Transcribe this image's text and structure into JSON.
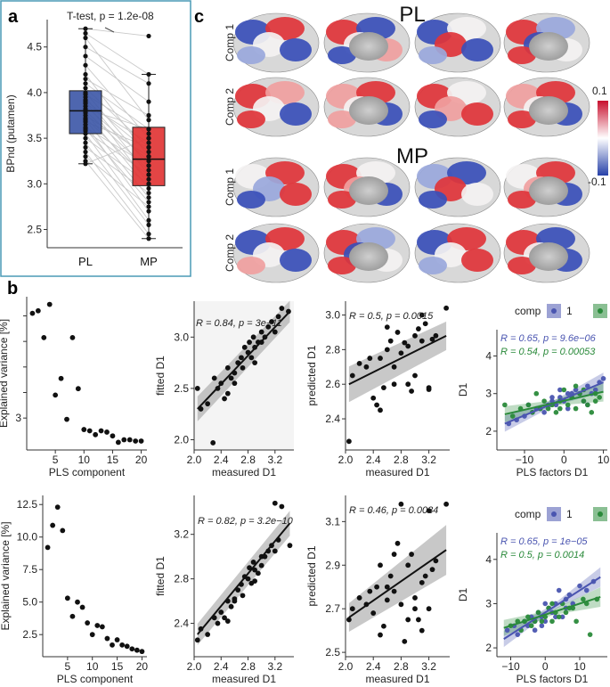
{
  "panel_labels": {
    "a": "a",
    "b": "b",
    "c": "c"
  },
  "colors": {
    "pl": "#3b55a6",
    "mp": "#e03131",
    "comp1": "#4a55b0",
    "comp2": "#2a8a3a",
    "band": "#9a9a9a",
    "ci_pls": "#d0d0d0"
  },
  "chart_data": [
    {
      "id": "a",
      "type": "box",
      "title": "T-test, p = 1.2e-08",
      "ylabel": "BPnd (putamen)",
      "xlabel": "",
      "categories": [
        "PL",
        "MP"
      ],
      "ylim": [
        2.3,
        4.8
      ],
      "yticks": [
        2.5,
        3.0,
        3.5,
        4.0,
        4.5
      ],
      "yticklabels": [
        "2.5",
        "3.0",
        "3.5",
        "4.0",
        "4.5"
      ],
      "boxes": [
        {
          "name": "PL",
          "q1": 3.55,
          "median": 3.8,
          "q3": 4.02,
          "lo": 3.22,
          "hi": 4.7
        },
        {
          "name": "MP",
          "q1": 2.98,
          "median": 3.27,
          "q3": 3.62,
          "lo": 2.4,
          "hi": 4.2
        }
      ],
      "paired": [
        [
          4.7,
          4.62
        ],
        [
          4.65,
          4.2
        ],
        [
          4.6,
          3.7
        ],
        [
          4.5,
          4.1
        ],
        [
          4.4,
          3.9
        ],
        [
          4.3,
          3.5
        ],
        [
          4.2,
          3.3
        ],
        [
          4.15,
          3.75
        ],
        [
          4.1,
          3.6
        ],
        [
          4.05,
          3.4
        ],
        [
          4.0,
          3.2
        ],
        [
          3.98,
          3.55
        ],
        [
          3.95,
          3.1
        ],
        [
          3.92,
          3.35
        ],
        [
          3.9,
          3.0
        ],
        [
          3.88,
          3.45
        ],
        [
          3.85,
          3.25
        ],
        [
          3.82,
          3.6
        ],
        [
          3.8,
          3.15
        ],
        [
          3.78,
          2.95
        ],
        [
          3.75,
          3.3
        ],
        [
          3.72,
          3.05
        ],
        [
          3.7,
          2.85
        ],
        [
          3.68,
          3.4
        ],
        [
          3.65,
          2.7
        ],
        [
          3.62,
          3.2
        ],
        [
          3.6,
          2.8
        ],
        [
          3.58,
          3.1
        ],
        [
          3.55,
          2.6
        ],
        [
          3.5,
          3.0
        ],
        [
          3.45,
          2.55
        ],
        [
          3.4,
          2.9
        ],
        [
          3.35,
          2.45
        ],
        [
          3.3,
          2.75
        ],
        [
          3.25,
          2.4
        ],
        [
          3.22,
          3.5
        ]
      ]
    },
    {
      "id": "b1",
      "type": "scatter",
      "xlabel": "PLS component",
      "ylabel": "Explained variance [%]",
      "xlim": [
        0,
        21
      ],
      "ylim": [
        0.5,
        12.5
      ],
      "xticks": [
        5,
        10,
        15,
        20
      ],
      "yticks": [
        3,
        5,
        7,
        9,
        11
      ],
      "yticklabels": [
        "3",
        "",
        "",
        "",
        ""
      ],
      "x": [
        1,
        2,
        3,
        4,
        5,
        6,
        7,
        8,
        9,
        10,
        11,
        12,
        13,
        14,
        15,
        16,
        17,
        18,
        19,
        20
      ],
      "y": [
        11.2,
        11.4,
        9.3,
        11.9,
        4.8,
        6.1,
        2.9,
        9.3,
        5.3,
        2.1,
        2.0,
        1.7,
        2.0,
        1.9,
        1.6,
        1.1,
        1.3,
        1.3,
        1.2,
        1.2
      ]
    },
    {
      "id": "b2",
      "type": "scatter",
      "xlabel": "measured D1",
      "ylabel": "fitted D1",
      "annotation": "R = 0.84, p = 3e−11",
      "xlim": [
        2.0,
        3.48
      ],
      "ylim": [
        1.9,
        3.35
      ],
      "xticks": [
        2.0,
        2.4,
        2.8,
        3.2
      ],
      "xticklabels": [
        "2.0",
        "2.4",
        "2.8",
        "3.2"
      ],
      "yticks": [
        2.0,
        2.5,
        3.0
      ],
      "yticklabels": [
        "2.0",
        "2.5",
        "3.0"
      ],
      "x": [
        2.05,
        2.1,
        2.2,
        2.3,
        2.35,
        2.4,
        2.45,
        2.5,
        2.55,
        2.6,
        2.65,
        2.7,
        2.72,
        2.75,
        2.8,
        2.82,
        2.85,
        2.88,
        2.9,
        2.95,
        3.0,
        3.05,
        3.1,
        3.15,
        3.2,
        3.25,
        3.3,
        3.4,
        2.5,
        2.6,
        2.9,
        3.0,
        2.28
      ],
      "y": [
        2.5,
        2.3,
        2.35,
        2.6,
        2.5,
        2.55,
        2.4,
        2.7,
        2.6,
        2.65,
        2.75,
        2.8,
        2.7,
        2.9,
        2.85,
        2.95,
        2.8,
        3.0,
        2.9,
        2.95,
        3.05,
        3.0,
        3.1,
        3.15,
        3.05,
        3.2,
        3.28,
        3.25,
        2.45,
        2.55,
        2.75,
        2.95,
        1.97
      ],
      "fit": {
        "x": [
          2.05,
          3.42
        ],
        "y": [
          2.3,
          3.25
        ]
      }
    },
    {
      "id": "b3",
      "type": "scatter",
      "xlabel": "measured D1",
      "ylabel": "predicted D1",
      "annotation": "R = 0.5, p = 0.0015",
      "xlim": [
        2.0,
        3.5
      ],
      "ylim": [
        2.22,
        3.08
      ],
      "xticks": [
        2.0,
        2.4,
        2.8,
        3.2
      ],
      "xticklabels": [
        "2.0",
        "2.4",
        "2.8",
        "3.2"
      ],
      "yticks": [
        2.4,
        2.6,
        2.8,
        3.0
      ],
      "yticklabels": [
        "2.4",
        "2.6",
        "2.8",
        "3.0"
      ],
      "x": [
        2.05,
        2.1,
        2.2,
        2.3,
        2.4,
        2.45,
        2.5,
        2.55,
        2.6,
        2.65,
        2.7,
        2.75,
        2.8,
        2.85,
        2.9,
        2.95,
        3.0,
        3.05,
        3.1,
        3.15,
        3.2,
        3.25,
        3.3,
        3.45,
        2.5,
        2.6,
        2.7,
        2.9,
        3.0,
        3.1,
        3.2,
        2.35
      ],
      "y": [
        2.27,
        2.65,
        2.72,
        2.7,
        2.52,
        2.48,
        2.75,
        2.58,
        2.8,
        2.85,
        2.6,
        2.9,
        2.78,
        2.84,
        2.82,
        2.56,
        2.88,
        2.92,
        3.0,
        2.95,
        2.57,
        2.86,
        2.88,
        3.04,
        2.45,
        2.93,
        2.7,
        2.6,
        2.65,
        2.85,
        2.58,
        2.75
      ],
      "fit": {
        "x": [
          2.05,
          3.45
        ],
        "y": [
          2.6,
          2.88
        ]
      }
    },
    {
      "id": "b4",
      "type": "scatter",
      "xlabel": "PLS factors D1",
      "ylabel": "D1",
      "legend": {
        "title": "comp",
        "items": [
          "1",
          "2"
        ]
      },
      "annotations": [
        "R = 0.65, p = 9.6e−06",
        "R = 0.54, p = 0.00053"
      ],
      "xlim": [
        -17,
        11
      ],
      "ylim": [
        1.5,
        4.7
      ],
      "xticks": [
        -10,
        0,
        10
      ],
      "xticklabels": [
        "−10",
        "0",
        "10"
      ],
      "yticks": [
        2,
        3,
        4
      ],
      "yticklabels": [
        "2",
        "3",
        "4"
      ],
      "series": [
        {
          "name": "1",
          "x": [
            -14,
            -12,
            -10,
            -8,
            -7,
            -6,
            -5,
            -4,
            -3,
            -2,
            -1,
            0,
            1,
            2,
            3,
            4,
            5,
            6,
            7,
            8,
            9,
            10,
            -9,
            -3,
            2,
            6,
            1,
            -1
          ],
          "y": [
            2.2,
            2.3,
            2.4,
            2.5,
            2.6,
            2.6,
            2.5,
            2.7,
            2.8,
            2.7,
            2.9,
            2.8,
            3.0,
            2.9,
            3.1,
            3.0,
            2.8,
            3.2,
            3.0,
            3.1,
            3.3,
            3.4,
            2.7,
            2.9,
            3.0,
            2.7,
            2.6,
            3.1
          ],
          "fit": {
            "x": [
              -15,
              10
            ],
            "y": [
              2.2,
              3.3
            ]
          }
        },
        {
          "name": "2",
          "x": [
            -15,
            -13,
            -11,
            -9,
            -8,
            -6,
            -5,
            -4,
            -3,
            -2,
            -1,
            0,
            1,
            2,
            3,
            4,
            5,
            6,
            7,
            8,
            9,
            -7,
            -1,
            3,
            5,
            8
          ],
          "y": [
            2.7,
            2.4,
            2.6,
            2.7,
            2.5,
            2.6,
            2.8,
            2.6,
            2.7,
            2.5,
            2.8,
            3.1,
            2.7,
            2.9,
            2.6,
            3.0,
            2.8,
            2.7,
            2.5,
            3.0,
            2.9,
            3.0,
            2.6,
            3.2,
            3.1,
            2.8
          ],
          "fit": {
            "x": [
              -15,
              10
            ],
            "y": [
              2.45,
              3.05
            ]
          }
        }
      ]
    },
    {
      "id": "b5",
      "type": "scatter",
      "xlabel": "PLS component",
      "ylabel": "Explained variance [%]",
      "xlim": [
        0,
        21
      ],
      "ylim": [
        0.8,
        13.2
      ],
      "xticks": [
        5,
        10,
        15,
        20
      ],
      "yticks": [
        2.5,
        5.0,
        7.5,
        10.0,
        12.5
      ],
      "yticklabels": [
        "2.5",
        "5.0",
        "7.5",
        "10.0",
        "12.5"
      ],
      "x": [
        1,
        2,
        3,
        4,
        5,
        6,
        7,
        8,
        9,
        10,
        11,
        12,
        13,
        14,
        15,
        16,
        17,
        18,
        19,
        20
      ],
      "y": [
        9.2,
        10.9,
        12.3,
        10.5,
        5.3,
        3.9,
        5.0,
        4.6,
        3.4,
        2.5,
        3.2,
        3.1,
        2.2,
        1.7,
        2.1,
        1.7,
        1.6,
        1.4,
        1.3,
        1.2
      ]
    },
    {
      "id": "b6",
      "type": "scatter",
      "xlabel": "measured D1",
      "ylabel": "fitted D1",
      "annotation": "R = 0.82, p = 3.2e−10",
      "xlim": [
        2.0,
        3.48
      ],
      "ylim": [
        2.1,
        3.55
      ],
      "xticks": [
        2.0,
        2.4,
        2.8,
        3.2
      ],
      "xticklabels": [
        "2.0",
        "2.4",
        "2.8",
        "3.2"
      ],
      "yticks": [
        2.4,
        2.8,
        3.2
      ],
      "yticklabels": [
        "2.4",
        "2.8",
        "3.2"
      ],
      "x": [
        2.05,
        2.1,
        2.2,
        2.3,
        2.35,
        2.4,
        2.45,
        2.5,
        2.55,
        2.6,
        2.65,
        2.7,
        2.72,
        2.75,
        2.8,
        2.82,
        2.85,
        2.88,
        2.9,
        2.95,
        3.0,
        3.05,
        3.1,
        3.15,
        3.2,
        3.3,
        3.42,
        2.5,
        2.6,
        2.9,
        3.0,
        3.2,
        3.25
      ],
      "y": [
        2.25,
        2.35,
        2.3,
        2.45,
        2.4,
        2.5,
        2.45,
        2.6,
        2.55,
        2.62,
        2.7,
        2.75,
        2.65,
        2.82,
        2.8,
        2.9,
        2.76,
        2.95,
        2.88,
        2.85,
        3.0,
        3.0,
        3.05,
        3.1,
        3.05,
        3.45,
        3.1,
        2.42,
        2.6,
        2.78,
        2.92,
        3.48,
        3.15
      ],
      "fit": {
        "x": [
          2.05,
          3.42
        ],
        "y": [
          2.3,
          3.3
        ]
      }
    },
    {
      "id": "b7",
      "type": "scatter",
      "xlabel": "measured D1",
      "ylabel": "predicted D1",
      "annotation": "R = 0.46, p = 0.0034",
      "xlim": [
        2.0,
        3.5
      ],
      "ylim": [
        2.48,
        3.22
      ],
      "xticks": [
        2.0,
        2.4,
        2.8,
        3.2
      ],
      "xticklabels": [
        "2.0",
        "2.4",
        "2.8",
        "3.2"
      ],
      "yticks": [
        2.5,
        2.7,
        2.9,
        3.1
      ],
      "yticklabels": [
        "2.5",
        "2.7",
        "2.9",
        "3.1"
      ],
      "x": [
        2.05,
        2.1,
        2.2,
        2.3,
        2.4,
        2.45,
        2.5,
        2.55,
        2.6,
        2.65,
        2.7,
        2.75,
        2.8,
        2.85,
        2.9,
        2.95,
        3.0,
        3.05,
        3.1,
        3.15,
        3.2,
        3.25,
        3.3,
        3.45,
        2.5,
        2.6,
        2.7,
        2.9,
        3.0,
        3.1,
        3.2,
        2.35,
        2.8
      ],
      "y": [
        2.65,
        2.7,
        2.75,
        2.72,
        2.68,
        2.8,
        2.9,
        2.62,
        2.8,
        2.85,
        2.78,
        3.0,
        2.72,
        2.55,
        2.9,
        2.95,
        2.7,
        2.65,
        2.6,
        2.85,
        3.15,
        2.88,
        2.92,
        3.18,
        2.58,
        2.74,
        2.95,
        2.65,
        2.75,
        2.82,
        2.7,
        2.78,
        3.18
      ],
      "fit": {
        "x": [
          2.05,
          3.45
        ],
        "y": [
          2.66,
          2.97
        ]
      }
    },
    {
      "id": "b8",
      "type": "scatter",
      "xlabel": "PLS factors D1",
      "ylabel": "D1",
      "legend": {
        "title": "comp",
        "items": [
          "1",
          "2"
        ]
      },
      "annotations": [
        "R = 0.65, p = 1e−05",
        "R = 0.5, p = 0.0014"
      ],
      "xlim": [
        -14,
        18
      ],
      "ylim": [
        1.8,
        4.6
      ],
      "xticks": [
        -10,
        0,
        10
      ],
      "xticklabels": [
        "−10",
        "0",
        "10"
      ],
      "yticks": [
        2,
        3,
        4
      ],
      "yticklabels": [
        "2",
        "3",
        "4"
      ],
      "series": [
        {
          "name": "1",
          "x": [
            -11,
            -9,
            -8,
            -6,
            -5,
            -4,
            -3,
            -2,
            -1,
            0,
            1,
            2,
            3,
            4,
            5,
            6,
            7,
            8,
            10,
            12,
            14,
            -3,
            0,
            3,
            6,
            -1
          ],
          "y": [
            2.4,
            2.5,
            2.3,
            2.6,
            2.5,
            2.7,
            2.6,
            2.8,
            2.7,
            2.6,
            2.9,
            2.8,
            3.0,
            3.3,
            2.7,
            3.1,
            3.2,
            3.0,
            3.4,
            3.3,
            3.5,
            2.4,
            3.0,
            2.7,
            2.9,
            2.5
          ],
          "fit": {
            "x": [
              -12,
              16
            ],
            "y": [
              2.2,
              3.6
            ]
          }
        },
        {
          "name": "2",
          "x": [
            -10,
            -8,
            -7,
            -5,
            -4,
            -3,
            -2,
            -1,
            0,
            1,
            2,
            3,
            4,
            5,
            6,
            8,
            9,
            11,
            13,
            15,
            -6,
            2,
            7,
            12
          ],
          "y": [
            2.5,
            2.6,
            2.4,
            2.7,
            2.5,
            2.6,
            2.8,
            2.6,
            2.7,
            2.9,
            2.6,
            2.8,
            2.7,
            3.0,
            2.8,
            2.9,
            2.6,
            3.1,
            2.3,
            3.1,
            2.6,
            3.0,
            2.9,
            3.0
          ],
          "fit": {
            "x": [
              -12,
              16
            ],
            "y": [
              2.45,
              3.15
            ]
          }
        }
      ]
    },
    {
      "id": "c",
      "type": "heatmap",
      "groups": [
        "PL",
        "MP"
      ],
      "row_labels": [
        "Comp 1",
        "Comp 2"
      ],
      "colorbar": {
        "max_label": "0.1",
        "min_label": "-0.1",
        "range": [
          -0.1,
          0.1
        ]
      }
    }
  ]
}
